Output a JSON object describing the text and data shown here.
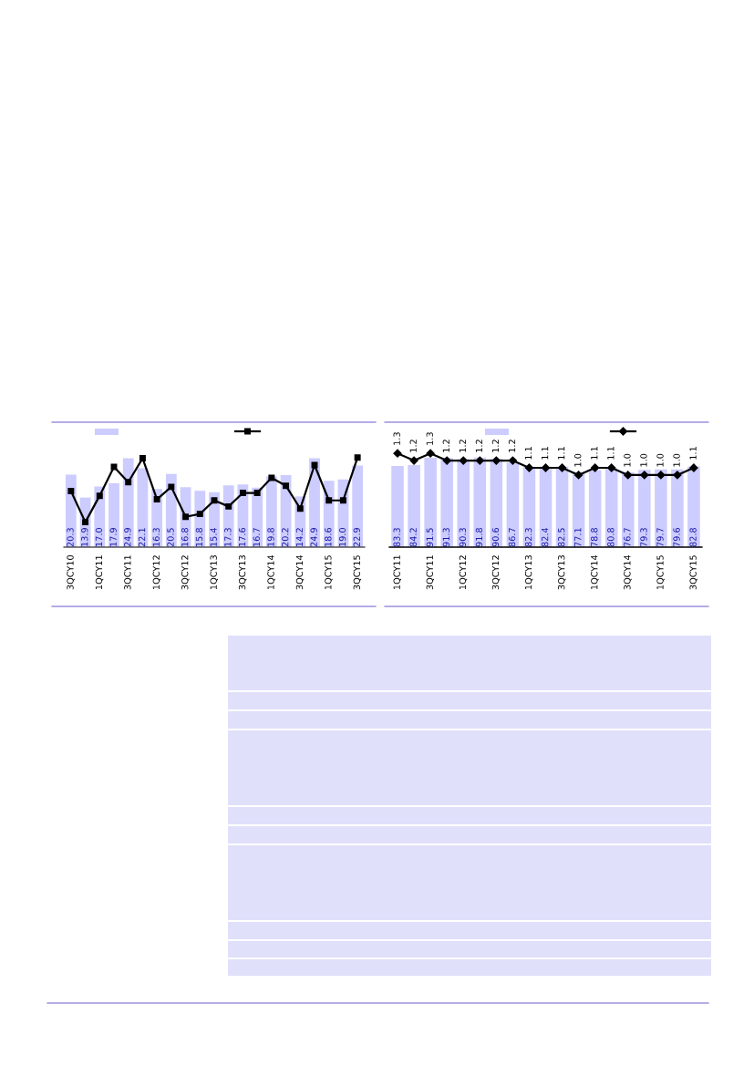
{
  "chart_data": [
    {
      "type": "bar",
      "categories": [
        "3QCY10",
        null,
        "1QCY11",
        null,
        "3QCY11",
        null,
        "1QCY12",
        null,
        "3QCY12",
        null,
        "1QCY13",
        null,
        "3QCY13",
        null,
        "1QCY14",
        null,
        "3QCY14",
        null,
        "1QCY15",
        null,
        "3QCY15"
      ],
      "grid": false,
      "series": [
        {
          "type": "bar",
          "color": "#ccccff",
          "values": [
            20.3,
            13.9,
            17.0,
            17.9,
            24.9,
            22.1,
            16.3,
            20.5,
            16.8,
            15.8,
            15.4,
            17.3,
            17.6,
            16.7,
            19.8,
            20.2,
            14.2,
            24.9,
            18.6,
            19.0,
            22.9
          ],
          "value_labels": [
            "20.3",
            "13.9",
            "17.0",
            "17.9",
            "24.9",
            "22.1",
            "16.3",
            "20.5",
            "16.8",
            "15.8",
            "15.4",
            "17.3",
            "17.6",
            "16.7",
            "19.8",
            "20.2",
            "14.2",
            "24.9",
            "18.6",
            "19.0",
            "22.9"
          ]
        },
        {
          "type": "line",
          "color": "#000000",
          "marker": "square",
          "values": [
            15.7,
            7.0,
            14.4,
            22.5,
            18.2,
            24.9,
            13.4,
            16.9,
            8.5,
            9.3,
            13.1,
            11.4,
            15.2,
            15.2,
            19.4,
            17.2,
            10.8,
            23.0,
            13.1,
            13.1,
            25.1
          ]
        }
      ]
    },
    {
      "type": "bar",
      "categories": [
        "1QCY11",
        null,
        "3QCY11",
        null,
        "1QCY12",
        null,
        "3QCY12",
        null,
        "1QCY13",
        null,
        "3QCY13",
        null,
        "1QCY14",
        null,
        "3QCY14",
        null,
        "1QCY15",
        null,
        "3QCY15"
      ],
      "grid": false,
      "series": [
        {
          "type": "bar",
          "color": "#ccccff",
          "values": [
            83.3,
            84.2,
            91.5,
            91.3,
            90.3,
            91.8,
            90.6,
            86.7,
            82.3,
            82.4,
            82.5,
            77.1,
            78.8,
            80.8,
            76.7,
            79.3,
            79.7,
            79.6,
            82.8
          ],
          "value_labels": [
            "83.3",
            "84.2",
            "91.5",
            "91.3",
            "90.3",
            "91.8",
            "90.6",
            "86.7",
            "82.3",
            "82.4",
            "82.5",
            "77.1",
            "78.8",
            "80.8",
            "76.7",
            "79.3",
            "79.7",
            "79.6",
            "82.8"
          ]
        },
        {
          "type": "line",
          "axis": "y2",
          "color": "#000000",
          "marker": "diamond",
          "values": [
            1.3,
            1.2,
            1.3,
            1.2,
            1.2,
            1.2,
            1.2,
            1.2,
            1.1,
            1.1,
            1.1,
            1.0,
            1.1,
            1.1,
            1.0,
            1.0,
            1.0,
            1.0,
            1.1
          ],
          "value_labels": [
            "1.3",
            "1.2",
            "1.3",
            "1.2",
            "1.2",
            "1.2",
            "1.2",
            "1.2",
            "1.1",
            "1.1",
            "1.1",
            "1.0",
            "1.1",
            "1.1",
            "1.0",
            "1.0",
            "1.0",
            "1.0",
            "1.1"
          ]
        }
      ]
    }
  ]
}
